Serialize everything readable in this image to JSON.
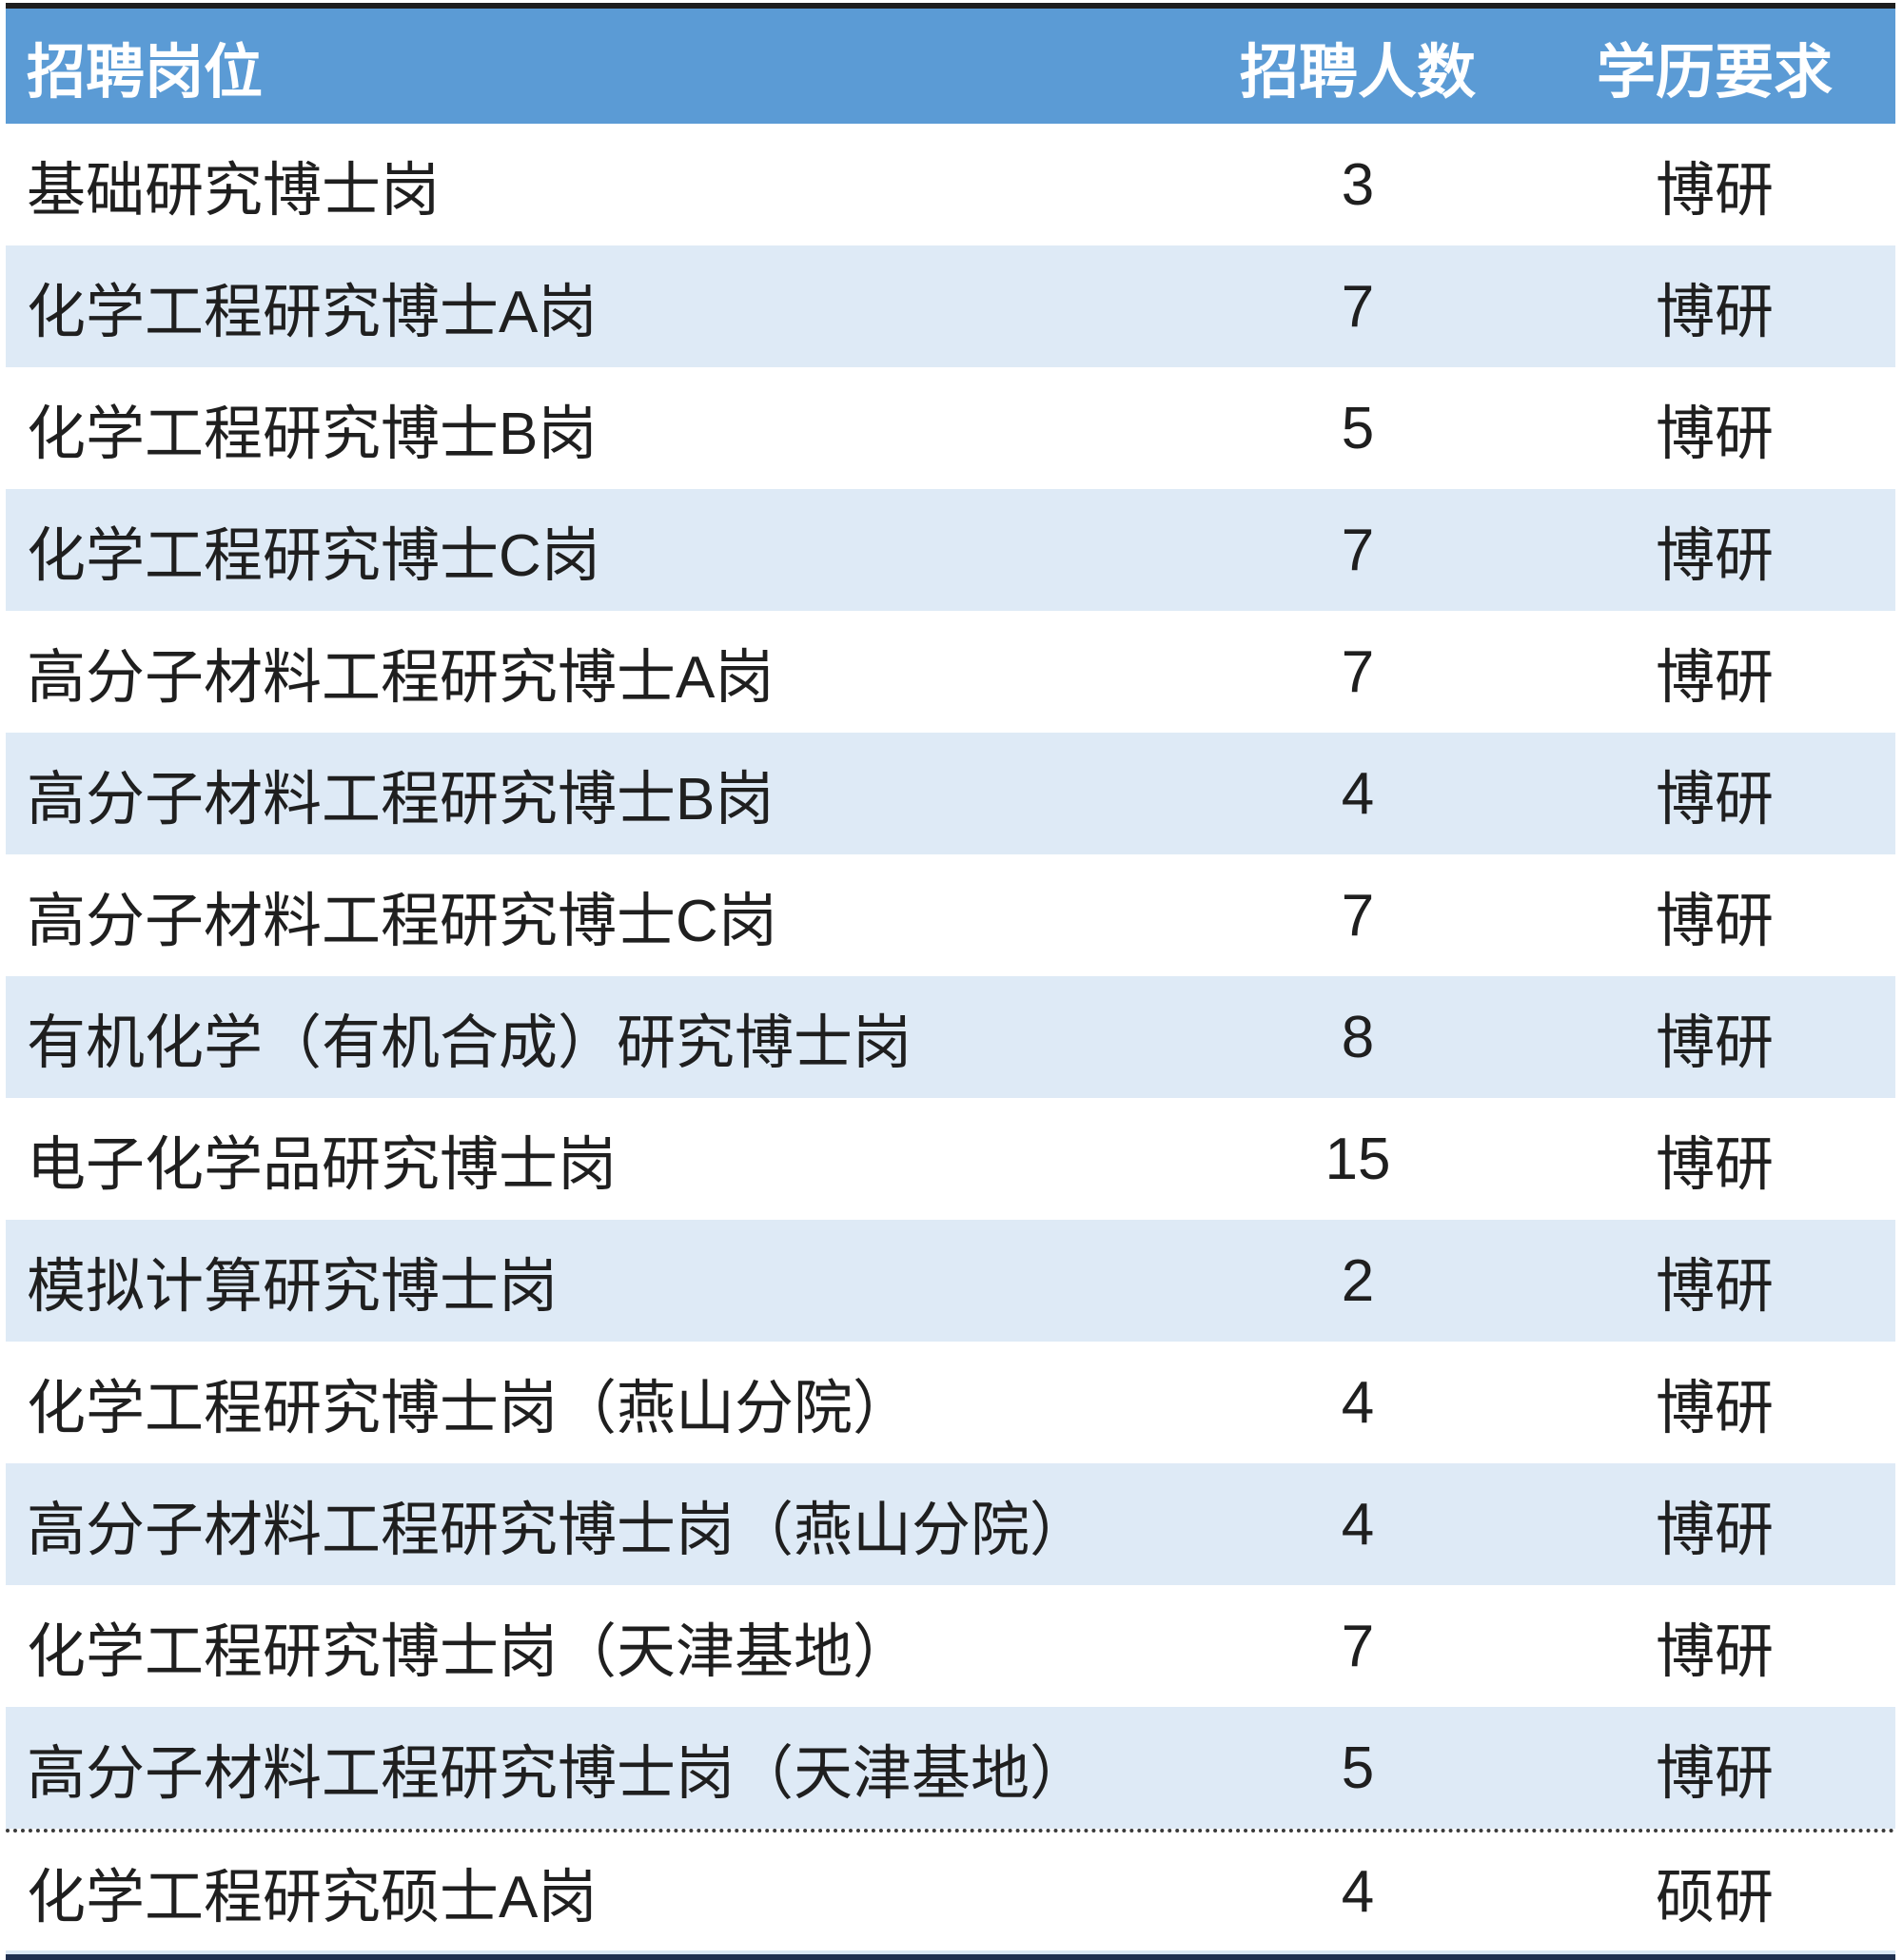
{
  "table": {
    "title_semantic": "recruitment-positions-table",
    "columns": {
      "position": "招聘岗位",
      "count": "招聘人数",
      "education": "学历要求"
    },
    "rows": [
      {
        "position": "基础研究博士岗",
        "count": "3",
        "education": "博研"
      },
      {
        "position": "化学工程研究博士A岗",
        "count": "7",
        "education": "博研"
      },
      {
        "position": "化学工程研究博士B岗",
        "count": "5",
        "education": "博研"
      },
      {
        "position": "化学工程研究博士C岗",
        "count": "7",
        "education": "博研"
      },
      {
        "position": "高分子材料工程研究博士A岗",
        "count": "7",
        "education": "博研"
      },
      {
        "position": "高分子材料工程研究博士B岗",
        "count": "4",
        "education": "博研"
      },
      {
        "position": "高分子材料工程研究博士C岗",
        "count": "7",
        "education": "博研"
      },
      {
        "position": "有机化学（有机合成）研究博士岗",
        "count": "8",
        "education": "博研"
      },
      {
        "position": "电子化学品研究博士岗",
        "count": "15",
        "education": "博研"
      },
      {
        "position": "模拟计算研究博士岗",
        "count": "2",
        "education": "博研"
      },
      {
        "position": "化学工程研究博士岗（燕山分院）",
        "count": "4",
        "education": "博研"
      },
      {
        "position": "高分子材料工程研究博士岗（燕山分院）",
        "count": "4",
        "education": "博研"
      },
      {
        "position": "化学工程研究博士岗（天津基地）",
        "count": "7",
        "education": "博研"
      },
      {
        "position": "高分子材料工程研究博士岗（天津基地）",
        "count": "5",
        "education": "博研"
      },
      {
        "position": "化学工程研究硕士A岗",
        "count": "4",
        "education": "硕研"
      }
    ],
    "dotted_divider_before_row_index": 14,
    "colors": {
      "header_bg": "#5B9BD5",
      "header_text": "#FFFFFF",
      "banded_row_bg": "#DEEAF6",
      "body_text": "#1F1F1F",
      "top_border": "#1E1E1E",
      "bottom_border": "#1F3050",
      "bottom_accent": "#D9E7F4",
      "dotted_divider": "#3A3A3A"
    }
  }
}
